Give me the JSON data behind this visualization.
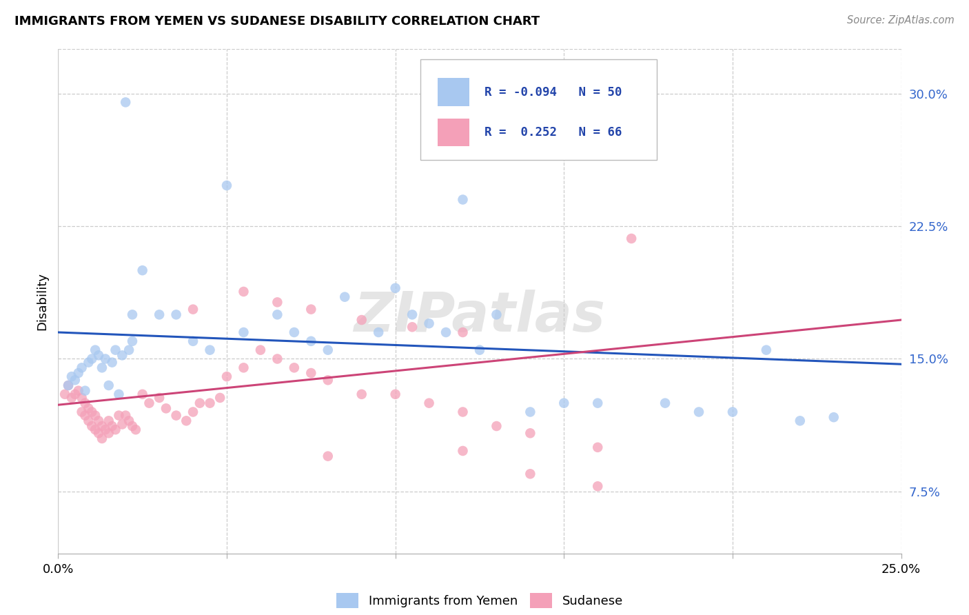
{
  "title": "IMMIGRANTS FROM YEMEN VS SUDANESE DISABILITY CORRELATION CHART",
  "source": "Source: ZipAtlas.com",
  "ylabel": "Disability",
  "y_ticks": [
    0.075,
    0.15,
    0.225,
    0.3
  ],
  "y_tick_labels": [
    "7.5%",
    "15.0%",
    "22.5%",
    "30.0%"
  ],
  "x_min": 0.0,
  "x_max": 0.25,
  "y_min": 0.04,
  "y_max": 0.325,
  "color_yemen": "#a8c8f0",
  "color_sudanese": "#f4a0b8",
  "color_line_yemen": "#2255bb",
  "color_line_sudanese": "#cc4477",
  "watermark": "ZIPatlas",
  "bottom_legend_yemen": "Immigrants from Yemen",
  "bottom_legend_sudanese": "Sudanese",
  "yemen_line_start": 0.165,
  "yemen_line_end": 0.147,
  "sudan_line_start": 0.124,
  "sudan_line_end": 0.172,
  "yemen_x": [
    0.003,
    0.004,
    0.005,
    0.006,
    0.007,
    0.008,
    0.009,
    0.01,
    0.011,
    0.012,
    0.013,
    0.014,
    0.015,
    0.016,
    0.017,
    0.018,
    0.019,
    0.02,
    0.021,
    0.022,
    0.025,
    0.03,
    0.035,
    0.04,
    0.045,
    0.055,
    0.065,
    0.07,
    0.075,
    0.08,
    0.085,
    0.095,
    0.1,
    0.105,
    0.11,
    0.115,
    0.12,
    0.125,
    0.13,
    0.14,
    0.15,
    0.16,
    0.18,
    0.19,
    0.2,
    0.21,
    0.22,
    0.23,
    0.022,
    0.05
  ],
  "yemen_y": [
    0.135,
    0.14,
    0.138,
    0.142,
    0.145,
    0.132,
    0.148,
    0.15,
    0.155,
    0.152,
    0.145,
    0.15,
    0.135,
    0.148,
    0.155,
    0.13,
    0.152,
    0.295,
    0.155,
    0.16,
    0.2,
    0.175,
    0.175,
    0.16,
    0.155,
    0.165,
    0.175,
    0.165,
    0.16,
    0.155,
    0.185,
    0.165,
    0.19,
    0.175,
    0.17,
    0.165,
    0.24,
    0.155,
    0.175,
    0.12,
    0.125,
    0.125,
    0.125,
    0.12,
    0.12,
    0.155,
    0.115,
    0.117,
    0.175,
    0.248
  ],
  "sudanese_x": [
    0.002,
    0.003,
    0.004,
    0.005,
    0.006,
    0.007,
    0.007,
    0.008,
    0.008,
    0.009,
    0.009,
    0.01,
    0.01,
    0.011,
    0.011,
    0.012,
    0.012,
    0.013,
    0.013,
    0.014,
    0.015,
    0.015,
    0.016,
    0.017,
    0.018,
    0.019,
    0.02,
    0.021,
    0.022,
    0.023,
    0.025,
    0.027,
    0.03,
    0.032,
    0.035,
    0.038,
    0.04,
    0.042,
    0.045,
    0.048,
    0.05,
    0.055,
    0.06,
    0.065,
    0.07,
    0.075,
    0.08,
    0.09,
    0.1,
    0.11,
    0.12,
    0.13,
    0.04,
    0.055,
    0.065,
    0.075,
    0.09,
    0.105,
    0.12,
    0.14,
    0.16,
    0.17,
    0.12,
    0.14,
    0.08,
    0.16
  ],
  "sudanese_y": [
    0.13,
    0.135,
    0.128,
    0.13,
    0.132,
    0.128,
    0.12,
    0.125,
    0.118,
    0.122,
    0.115,
    0.12,
    0.112,
    0.118,
    0.11,
    0.115,
    0.108,
    0.112,
    0.105,
    0.11,
    0.108,
    0.115,
    0.112,
    0.11,
    0.118,
    0.113,
    0.118,
    0.115,
    0.112,
    0.11,
    0.13,
    0.125,
    0.128,
    0.122,
    0.118,
    0.115,
    0.12,
    0.125,
    0.125,
    0.128,
    0.14,
    0.145,
    0.155,
    0.15,
    0.145,
    0.142,
    0.138,
    0.13,
    0.13,
    0.125,
    0.12,
    0.112,
    0.178,
    0.188,
    0.182,
    0.178,
    0.172,
    0.168,
    0.165,
    0.108,
    0.078,
    0.218,
    0.098,
    0.085,
    0.095,
    0.1
  ]
}
